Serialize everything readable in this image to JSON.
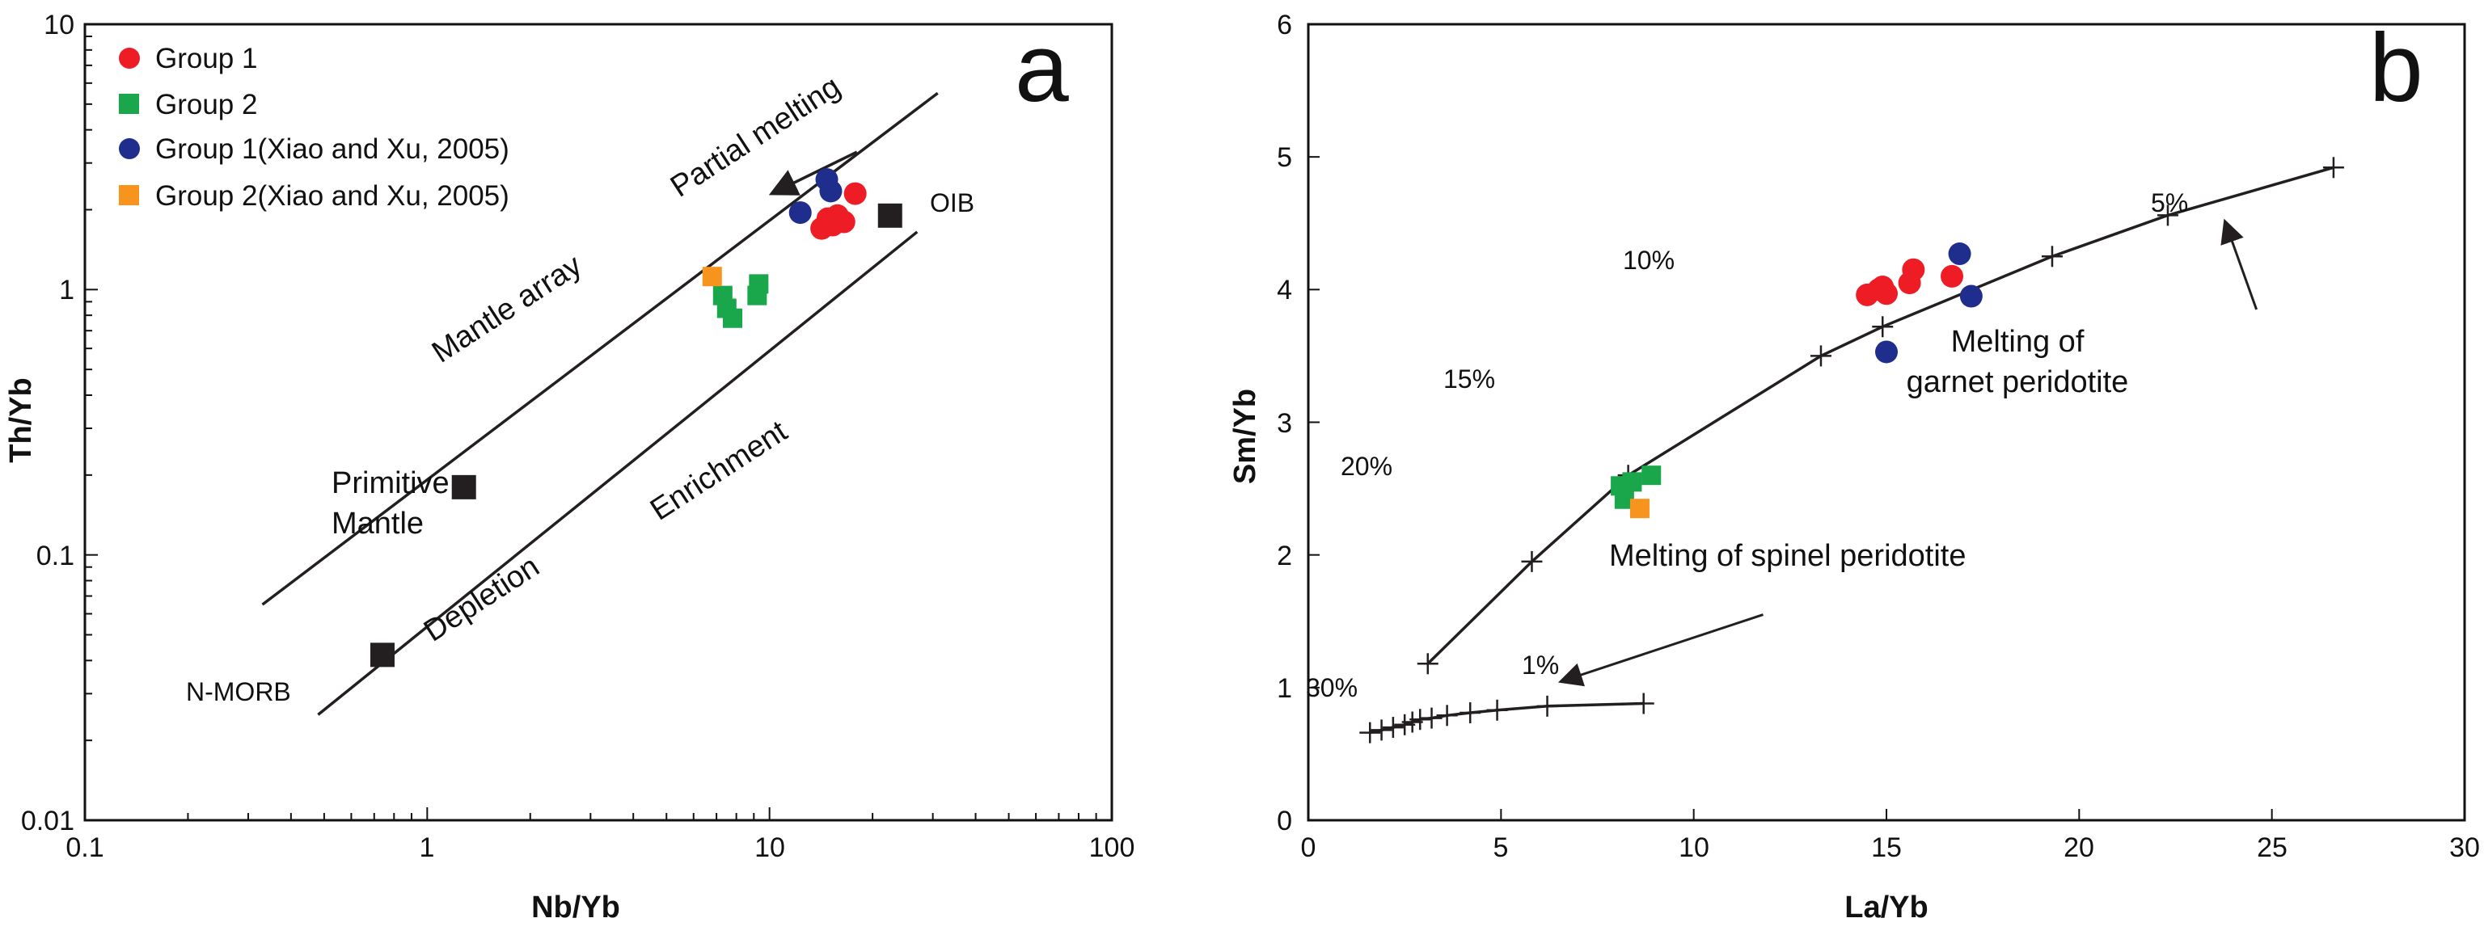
{
  "colors": {
    "group1": "#ee1c25",
    "group2": "#1aa64a",
    "group1_xx": "#1f2e8c",
    "group2_xx": "#f7941d",
    "ref": "#231f20",
    "line": "#231f20"
  },
  "chart_data": [
    {
      "type": "scatter",
      "panel_label": "a",
      "xscale": "log",
      "yscale": "log",
      "xlabel": "Nb/Yb",
      "ylabel": "Th/Yb",
      "xlim": [
        0.1,
        100
      ],
      "ylim": [
        0.01,
        10
      ],
      "x_tick_labels": [
        "0.1",
        "1",
        "10",
        "100"
      ],
      "y_tick_labels": [
        "0.01",
        "0.1",
        "1",
        "10"
      ],
      "legend": {
        "position": "top-left",
        "entries": [
          {
            "label": "Group 1",
            "series": "group1"
          },
          {
            "label": "Group 2",
            "series": "group2"
          },
          {
            "label": "Group 1(Xiao and Xu,  2005)",
            "series": "group1_xx"
          },
          {
            "label": "Group 2(Xiao and Xu,  2005)",
            "series": "group2_xx"
          }
        ]
      },
      "series": [
        {
          "name": "Group 1",
          "key": "group1",
          "marker": "circle",
          "x": [
            14.2,
            14.8,
            15.3,
            15.8,
            16.5,
            17.8
          ],
          "y": [
            1.7,
            1.85,
            1.75,
            1.9,
            1.8,
            2.3
          ]
        },
        {
          "name": "Group 2",
          "key": "group2",
          "marker": "square",
          "x": [
            7.3,
            7.5,
            7.8,
            9.3,
            9.2
          ],
          "y": [
            0.95,
            0.85,
            0.78,
            1.05,
            0.95
          ]
        },
        {
          "name": "Group 1(Xiao and Xu, 2005)",
          "key": "group1_xx",
          "marker": "circle",
          "x": [
            12.3,
            14.7,
            15.1
          ],
          "y": [
            1.95,
            2.6,
            2.35
          ]
        },
        {
          "name": "Group 2(Xiao and Xu, 2005)",
          "key": "group2_xx",
          "marker": "square",
          "x": [
            6.8
          ],
          "y": [
            1.12
          ]
        }
      ],
      "reference_points": [
        {
          "label": "Primitive",
          "label2": "Mantle",
          "x": 1.28,
          "y": 0.18
        },
        {
          "label": "N-MORB",
          "x": 0.74,
          "y": 0.042
        },
        {
          "label": "OIB",
          "x": 22.5,
          "y": 1.9
        }
      ],
      "lines": [
        {
          "x1": 0.33,
          "y1": 0.065,
          "x2": 31,
          "y2": 5.5
        },
        {
          "x1": 0.48,
          "y1": 0.025,
          "x2": 27,
          "y2": 1.65
        }
      ],
      "annotations": {
        "mantle_array": "Mantle array",
        "partial_melting": "Partial melting",
        "enrichment": "Enrichment",
        "depletion": "Depletion"
      },
      "arrow": {
        "from": [
          18,
          3.3
        ],
        "to": [
          10.3,
          2.32
        ]
      }
    },
    {
      "type": "line",
      "panel_label": "b",
      "xlabel": "La/Yb",
      "ylabel": "Sm/Yb",
      "xlim": [
        0,
        30
      ],
      "ylim": [
        0,
        6
      ],
      "x_ticks": [
        0,
        5,
        10,
        15,
        20,
        25,
        30
      ],
      "y_ticks": [
        0,
        1,
        2,
        3,
        4,
        5,
        6
      ],
      "series": [
        {
          "name": "Group 1",
          "key": "group1",
          "marker": "circle",
          "x": [
            14.5,
            14.8,
            15.0,
            14.9,
            15.6,
            15.7,
            16.7
          ],
          "y": [
            3.96,
            4.0,
            3.97,
            4.02,
            4.05,
            4.15,
            4.1
          ]
        },
        {
          "name": "Group 2",
          "key": "group2",
          "marker": "square",
          "x": [
            8.1,
            8.4,
            8.9,
            8.2
          ],
          "y": [
            2.52,
            2.55,
            2.6,
            2.42
          ]
        },
        {
          "name": "Group 1(Xiao and Xu, 2005)",
          "key": "group1_xx",
          "marker": "circle",
          "x": [
            16.9,
            17.2,
            15.0
          ],
          "y": [
            4.27,
            3.95,
            3.53
          ]
        },
        {
          "name": "Group 2(Xiao and Xu, 2005)",
          "key": "group2_xx",
          "marker": "square",
          "x": [
            8.6
          ],
          "y": [
            2.35
          ]
        }
      ],
      "curves": [
        {
          "name": "Melting of garnet peridotite",
          "x": [
            3.1,
            5.8,
            8.3,
            13.3,
            14.9,
            19.3,
            22.3,
            26.6
          ],
          "y": [
            1.18,
            1.95,
            2.6,
            3.5,
            3.72,
            4.25,
            4.56,
            4.92
          ]
        },
        {
          "name": "Melting of spinel peridotite",
          "x": [
            1.6,
            1.9,
            2.2,
            2.5,
            2.7,
            2.9,
            3.2,
            3.6,
            4.2,
            4.9,
            6.2,
            8.7
          ],
          "y": [
            0.66,
            0.68,
            0.7,
            0.72,
            0.74,
            0.76,
            0.77,
            0.79,
            0.81,
            0.83,
            0.86,
            0.88
          ]
        }
      ],
      "annotations": {
        "garnet_label_1": "Melting of",
        "garnet_label_2": "garnet peridotite",
        "spinel_label": "Melting of spinel peridotite",
        "p5": "5%",
        "p10": "10%",
        "p15": "15%",
        "p20": "20%",
        "p1": "1%",
        "p30": "30%"
      },
      "arrows": [
        {
          "from": [
            24.6,
            3.85
          ],
          "to": [
            23.8,
            4.5
          ]
        },
        {
          "from": [
            11.8,
            1.55
          ],
          "to": [
            6.6,
            1.05
          ]
        }
      ]
    }
  ]
}
